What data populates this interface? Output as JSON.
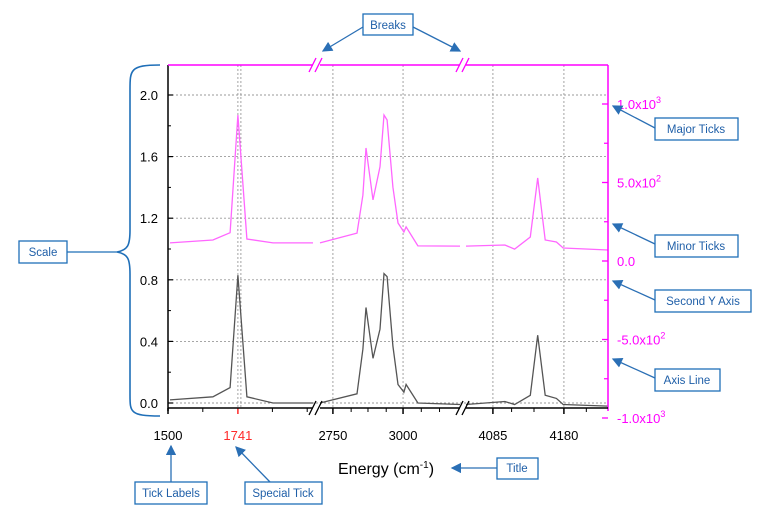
{
  "chart_data": {
    "type": "line",
    "title": "",
    "xlabel": "Energy (cm",
    "xlabel_superscript": "-1",
    "xlabel_close": ")",
    "x_segments": [
      [
        1500,
        2000
      ],
      [
        2704,
        3203
      ],
      [
        4049,
        4239
      ]
    ],
    "x_ticks": [
      "1500",
      "1741",
      "2750",
      "3000",
      "4085",
      "4180"
    ],
    "special_tick": "1741",
    "special_tick_color": "#ff2a2a",
    "y_left": {
      "range": [
        -0.05,
        2.2
      ],
      "ticks": [
        "0.0",
        "0.4",
        "0.8",
        "1.2",
        "1.6",
        "2.0"
      ],
      "color": "#000000"
    },
    "y_right": {
      "range": [
        -1000,
        1000
      ],
      "ticks": [
        "1.0x10",
        "5.0x10",
        "0.0",
        "-5.0x10",
        "-1.0x10"
      ],
      "tick_exponents": [
        "3",
        "2",
        "",
        "2",
        "3"
      ],
      "color": "#ff00ff"
    },
    "grid": true,
    "series": [
      {
        "axis": "left",
        "color": "#555555",
        "x": [
          1507,
          1655,
          1714,
          1741,
          1772,
          1862,
          2000,
          2704,
          2836,
          2857,
          2868,
          2893,
          2918,
          2932,
          2943,
          2964,
          2982,
          3003,
          3011,
          3053,
          3203,
          4049,
          4101,
          4114,
          4135,
          4145,
          4155,
          4170,
          4179,
          4239
        ],
        "y": [
          0.02,
          0.04,
          0.1,
          0.83,
          0.04,
          0.0,
          0.0,
          0.0,
          0.06,
          0.35,
          0.62,
          0.29,
          0.48,
          0.84,
          0.82,
          0.37,
          0.12,
          0.07,
          0.12,
          0.0,
          -0.01,
          -0.01,
          0.01,
          -0.01,
          0.05,
          0.44,
          0.05,
          0.03,
          -0.01,
          -0.02
        ]
      },
      {
        "axis": "right",
        "color": "#ff66ff",
        "x": [
          1507,
          1655,
          1714,
          1741,
          1772,
          1862,
          2000,
          2704,
          2836,
          2857,
          2868,
          2893,
          2918,
          2932,
          2943,
          2964,
          2982,
          3003,
          3011,
          3053,
          3203,
          4049,
          4101,
          4114,
          4135,
          4145,
          4155,
          4170,
          4179,
          4239
        ],
        "y": [
          115,
          134,
          180,
          930,
          140,
          115,
          115,
          115,
          178,
          420,
          720,
          389,
          600,
          930,
          898,
          471,
          242,
          185,
          217,
          96,
          95,
          95,
          102,
          76,
          153,
          529,
          134,
          121,
          83,
          70
        ]
      }
    ]
  },
  "annotations": {
    "breaks": "Breaks",
    "major_ticks": "Major Ticks",
    "minor_ticks": "Minor Ticks",
    "second_y_axis": "Second Y Axis",
    "axis_line": "Axis Line",
    "scale": "Scale",
    "tick_labels": "Tick Labels",
    "special_tick": "Special Tick",
    "title": "Title",
    "color": "#1f6fb8"
  }
}
